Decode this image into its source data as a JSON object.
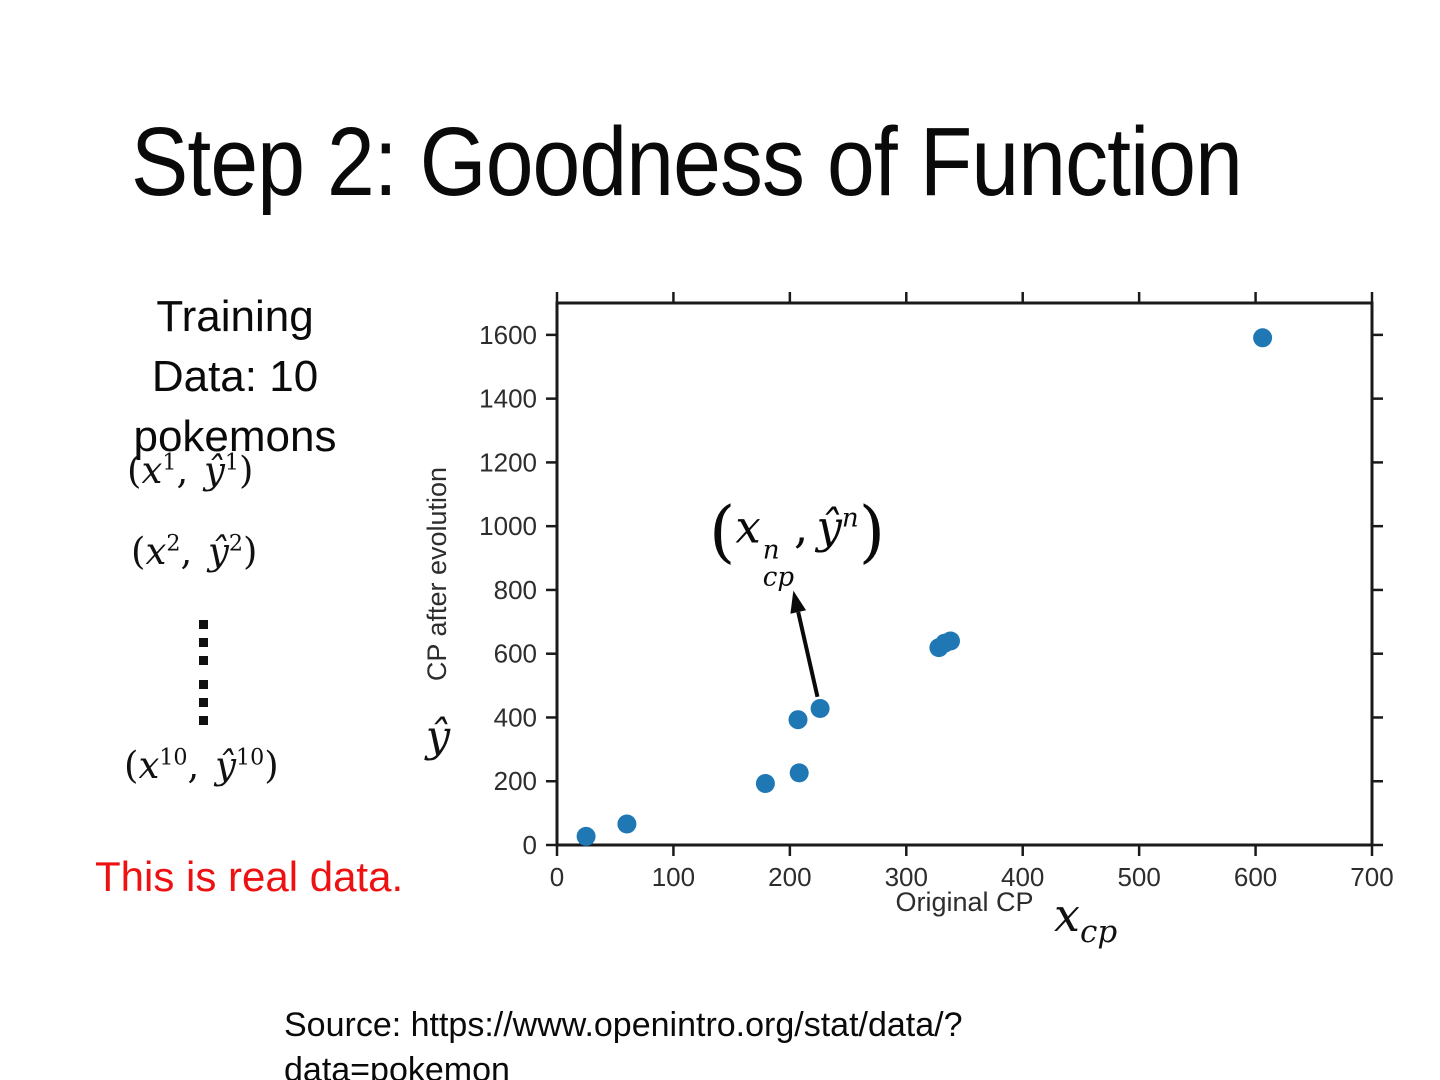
{
  "slide": {
    "title": "Step 2: Goodness of Function",
    "training_lines": [
      "Training",
      "Data: 10",
      "pokemons"
    ],
    "pairs": [
      {
        "x_sup": "1",
        "y_sup": "1"
      },
      {
        "x_sup": "2",
        "y_sup": "2"
      },
      {
        "x_sup": "10",
        "y_sup": "10"
      }
    ],
    "pair_symbols": {
      "open": "(",
      "x_base": "x",
      "comma": ",",
      "y_base": "ŷ",
      "close": ")"
    },
    "ellipsis_dot_count": 6,
    "note": "This is real data.",
    "note_color": "#ee1111",
    "source_lines": [
      "Source: https://www.openintro.org/stat/data/?",
      "data=pokemon"
    ]
  },
  "chart_data": {
    "type": "scatter",
    "title": "",
    "xlabel": "Original CP",
    "ylabel": "CP after evolution",
    "x_math_label": {
      "base": "x",
      "sub": "cp"
    },
    "y_math_label": "ŷ",
    "xlim": [
      0,
      700
    ],
    "ylim": [
      0,
      1700
    ],
    "xticks": [
      0,
      100,
      200,
      300,
      400,
      500,
      600,
      700
    ],
    "yticks": [
      0,
      200,
      400,
      600,
      800,
      1000,
      1200,
      1400,
      1600
    ],
    "grid": false,
    "legend": "none",
    "points": [
      {
        "x": 25,
        "y": 27
      },
      {
        "x": 60,
        "y": 66
      },
      {
        "x": 179,
        "y": 193
      },
      {
        "x": 208,
        "y": 226
      },
      {
        "x": 207,
        "y": 393
      },
      {
        "x": 226,
        "y": 428
      },
      {
        "x": 328,
        "y": 619
      },
      {
        "x": 333,
        "y": 633
      },
      {
        "x": 338,
        "y": 640
      },
      {
        "x": 606,
        "y": 1591
      }
    ],
    "point_color": "#1f77b4",
    "axis_color": "#1a1a1a",
    "annotation": {
      "parts": {
        "open": "(",
        "x_base": "x",
        "x_sup": "n",
        "x_sub": "cp",
        "comma": ",",
        "y_base": "ŷ",
        "y_sup": "n",
        "close": ")"
      },
      "target": {
        "x": 226,
        "y": 428
      },
      "arrow_to": {
        "x": 203,
        "y": 798
      }
    }
  }
}
